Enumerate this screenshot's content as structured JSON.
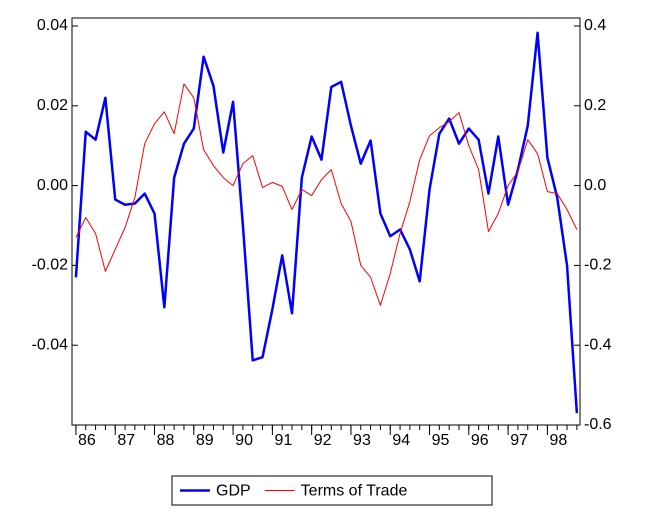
{
  "chart_data": {
    "type": "line",
    "x": [
      1986,
      1986.25,
      1986.5,
      1986.75,
      1987,
      1987.25,
      1987.5,
      1987.75,
      1988,
      1988.25,
      1988.5,
      1988.75,
      1989,
      1989.25,
      1989.5,
      1989.75,
      1990,
      1990.25,
      1990.5,
      1990.75,
      1991,
      1991.25,
      1991.5,
      1991.75,
      1992,
      1992.25,
      1992.5,
      1992.75,
      1993,
      1993.25,
      1993.5,
      1993.75,
      1994,
      1994.25,
      1994.5,
      1994.75,
      1995,
      1995.25,
      1995.5,
      1995.75,
      1996,
      1996.25,
      1996.5,
      1996.75,
      1997,
      1997.25,
      1997.5,
      1997.75,
      1998,
      1998.25,
      1998.5,
      1998.75
    ],
    "series": [
      {
        "name": "GDP",
        "color": "#0000ff",
        "values": [
          -0.023,
          0.0135,
          0.0115,
          0.022,
          -0.0035,
          -0.0048,
          -0.0045,
          -0.002,
          -0.007,
          -0.0305,
          0.002,
          0.0105,
          0.0143,
          0.0323,
          0.025,
          0.0083,
          0.021,
          -0.01,
          -0.0438,
          -0.043,
          -0.031,
          -0.0175,
          -0.032,
          0.002,
          0.0123,
          0.0065,
          0.0247,
          0.026,
          0.015,
          0.0055,
          0.0113,
          -0.007,
          -0.0127,
          -0.011,
          -0.016,
          -0.024,
          -0.001,
          0.013,
          0.0168,
          0.0105,
          0.0143,
          0.0115,
          -0.002,
          0.0123,
          -0.0048,
          0.004,
          0.015,
          0.0383,
          0.007,
          -0.003,
          -0.02,
          -0.057
        ]
      },
      {
        "name": "Terms of Trade",
        "color": "#ff0000",
        "axis": "y2",
        "values": [
          -0.13,
          -0.08,
          -0.12,
          -0.215,
          -0.16,
          -0.105,
          -0.03,
          0.105,
          0.155,
          0.185,
          0.13,
          0.255,
          0.22,
          0.09,
          0.05,
          0.02,
          0.0,
          0.055,
          0.075,
          -0.005,
          0.008,
          -0.002,
          -0.06,
          -0.01,
          -0.025,
          0.015,
          0.04,
          -0.045,
          -0.09,
          -0.2,
          -0.23,
          -0.3,
          -0.22,
          -0.12,
          -0.04,
          0.065,
          0.125,
          0.145,
          0.16,
          0.183,
          0.1,
          0.04,
          -0.115,
          -0.07,
          0.0,
          0.035,
          0.115,
          0.08,
          -0.015,
          -0.02,
          -0.06,
          -0.11
        ]
      }
    ],
    "xlim": [
      1985.9,
      1998.83
    ],
    "xticks": [
      {
        "value": 1986,
        "label": "86"
      },
      {
        "value": 1987,
        "label": "87"
      },
      {
        "value": 1988,
        "label": "88"
      },
      {
        "value": 1989,
        "label": "89"
      },
      {
        "value": 1990,
        "label": "90"
      },
      {
        "value": 1991,
        "label": "91"
      },
      {
        "value": 1992,
        "label": "92"
      },
      {
        "value": 1993,
        "label": "93"
      },
      {
        "value": 1994,
        "label": "94"
      },
      {
        "value": 1995,
        "label": "95"
      },
      {
        "value": 1996,
        "label": "96"
      },
      {
        "value": 1997,
        "label": "97"
      },
      {
        "value": 1998,
        "label": "98"
      }
    ],
    "ylim": [
      -0.06,
      0.042
    ],
    "yticks": [
      -0.04,
      -0.02,
      {
        "value": 0,
        "label": "0.00"
      },
      0.02,
      0.04
    ],
    "y2lim": [
      -0.6,
      0.42
    ],
    "y2ticks": [
      -0.6,
      -0.4,
      -0.2,
      {
        "value": 0,
        "label": "0.0"
      },
      0.2,
      0.4
    ],
    "legend": "bottom"
  }
}
